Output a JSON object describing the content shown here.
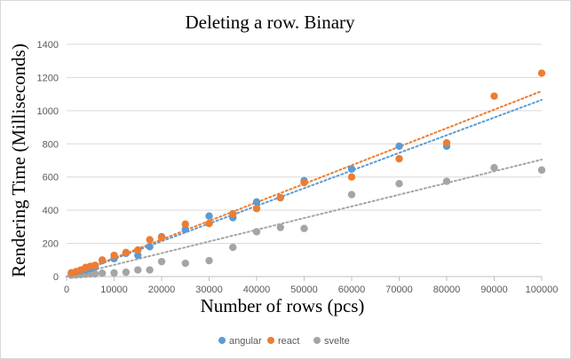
{
  "chart_data": {
    "type": "scatter",
    "title": "Deleting a row. Binary",
    "xlabel": "Number of rows (pcs)",
    "ylabel": "Rendering Time (Milliseconds)",
    "xlim": [
      0,
      100000
    ],
    "ylim": [
      0,
      1400
    ],
    "x_ticks": [
      0,
      10000,
      20000,
      30000,
      40000,
      50000,
      60000,
      70000,
      80000,
      90000,
      100000
    ],
    "y_ticks": [
      0,
      200,
      400,
      600,
      800,
      1000,
      1200,
      1400
    ],
    "grid": "horizontal",
    "legend_position": "bottom",
    "trendlines": "linear, dotted",
    "series": [
      {
        "name": "angular",
        "color": "#5b9bd5",
        "x": [
          1000,
          2000,
          3000,
          4000,
          5000,
          6000,
          7500,
          10000,
          12500,
          15000,
          17500,
          20000,
          25000,
          30000,
          35000,
          40000,
          45000,
          50000,
          60000,
          70000,
          80000
        ],
        "y": [
          22,
          28,
          34,
          40,
          48,
          58,
          96,
          108,
          140,
          128,
          180,
          240,
          285,
          365,
          355,
          450,
          475,
          578,
          648,
          786,
          786
        ],
        "trend": [
          0,
          1065
        ]
      },
      {
        "name": "react",
        "color": "#ed7d31",
        "x": [
          1000,
          2000,
          3000,
          4000,
          5000,
          6000,
          7500,
          10000,
          12500,
          15000,
          17500,
          20000,
          25000,
          30000,
          35000,
          40000,
          45000,
          50000,
          60000,
          70000,
          80000,
          90000,
          100000
        ],
        "y": [
          22,
          30,
          40,
          55,
          62,
          68,
          100,
          128,
          145,
          160,
          222,
          235,
          316,
          320,
          378,
          410,
          476,
          566,
          600,
          710,
          806,
          1088,
          1226
        ],
        "trend": [
          0,
          1118
        ]
      },
      {
        "name": "svelte",
        "color": "#a5a5a5",
        "x": [
          1000,
          2000,
          3000,
          4000,
          5000,
          6000,
          7500,
          10000,
          12500,
          15000,
          17500,
          20000,
          25000,
          30000,
          35000,
          40000,
          45000,
          50000,
          60000,
          70000,
          80000,
          90000,
          100000
        ],
        "y": [
          8,
          10,
          12,
          14,
          16,
          16,
          20,
          22,
          26,
          40,
          40,
          90,
          80,
          96,
          176,
          270,
          296,
          290,
          494,
          560,
          574,
          656,
          642
        ],
        "trend": [
          0,
          705
        ]
      }
    ]
  }
}
